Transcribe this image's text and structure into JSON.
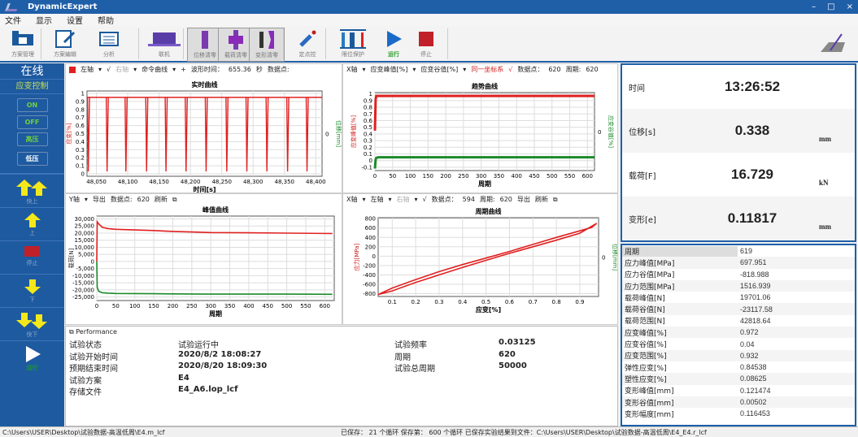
{
  "app": {
    "title": "DynamicExpert",
    "window_controls": [
      "–",
      "□",
      "×"
    ]
  },
  "menu": [
    "文件",
    "显示",
    "设置",
    "帮助"
  ],
  "toolbar": [
    {
      "label": "方案管理",
      "icon": "scheme-manage-icon"
    },
    {
      "label": "方案编辑",
      "icon": "scheme-edit-icon"
    },
    {
      "label": "分析",
      "icon": "analysis-icon"
    },
    {
      "label": "联机",
      "icon": "connect-laptop-icon"
    },
    {
      "label": "位移清零",
      "icon": "displacement-zero-icon"
    },
    {
      "label": "载荷清零",
      "icon": "load-zero-icon"
    },
    {
      "label": "变形清零",
      "icon": "deformation-zero-icon"
    },
    {
      "label": "定点控",
      "icon": "fixed-point-icon"
    },
    {
      "label": "限位保护",
      "icon": "limit-protect-icon"
    },
    {
      "label": "运行",
      "icon": "play-icon"
    },
    {
      "label": "停止",
      "icon": "stop-icon"
    }
  ],
  "colors": {
    "brand": "#1f5fa8",
    "series_red": "#e02020",
    "series_green": "#1a8a2a",
    "run_green": "#2aa02a",
    "stop_red": "#c0202a",
    "arrow_yellow": "#f3e81a"
  },
  "sidebar": {
    "status": "在线",
    "mode": "应变控制",
    "buttons": [
      "ON",
      "OFF",
      "高压",
      "低压"
    ],
    "moves": [
      {
        "label": "快上",
        "icon": "fast-up-icon"
      },
      {
        "label": "上",
        "icon": "up-icon"
      },
      {
        "label": "停止",
        "icon": "stop-icon"
      },
      {
        "label": "下",
        "icon": "down-icon"
      },
      {
        "label": "快下",
        "icon": "fast-down-icon"
      },
      {
        "label": "运行",
        "icon": "play-icon"
      }
    ]
  },
  "panes": {
    "realtime": {
      "left_axis": "左轴",
      "check": "√",
      "right_axis": "右轴",
      "cmd": "命令曲线",
      "plus": "+",
      "wave_time_label": "波形时间：",
      "wave_time": "655.36",
      "unit": "秒",
      "points_label": "数据点:"
    },
    "trend": {
      "x_axis": "X轴",
      "s1": "应变峰值[%]",
      "s2": "应变谷值[%]",
      "same": "同一坐标系",
      "check": "√",
      "points_label": "数据点：",
      "points": "620",
      "cycle_label": "周期:",
      "cycle": "620"
    },
    "peak": {
      "y_axis": "Y轴",
      "export": "导出",
      "points_label": "数据点:",
      "points": "620",
      "refresh": "刷新"
    },
    "cycle": {
      "x_axis": "X轴",
      "left_axis": "左轴",
      "right_axis": "右轴",
      "check": "√",
      "points_label": "数据点：",
      "points": "594",
      "cycle_label": "周期:",
      "cycle": "620",
      "export": "导出",
      "refresh": "刷新"
    }
  },
  "chart_data": [
    {
      "type": "line",
      "title": "实时曲线",
      "xlabel": "时间[s]",
      "ylabel": "应变[%]",
      "y2label": "位移[mm]",
      "y2ticks": [
        "0"
      ],
      "xlim": [
        48035,
        48410
      ],
      "ylim": [
        -0.03,
        1.03
      ],
      "xticks": [
        48050,
        48100,
        48150,
        48200,
        48250,
        48300,
        48350,
        48400
      ],
      "xtick_labels": [
        "48,050",
        "48,100",
        "48,150",
        "48,200",
        "48,250",
        "48,300",
        "48,350",
        "48,400"
      ],
      "yticks": [
        0,
        0.1,
        0.2,
        0.3,
        0.4,
        0.5,
        0.6,
        0.7,
        0.8,
        0.9,
        1
      ],
      "ytick_labels": [
        "0",
        "0.1",
        "0.2",
        "0.3",
        "0.4",
        "0.5",
        "0.6",
        "0.7",
        "0.8",
        "0.9",
        "1"
      ],
      "grid": true,
      "baseline": 0.95,
      "spike_min": 0.03,
      "spike_times": [
        48037,
        48067,
        48097,
        48130,
        48161,
        48193,
        48225,
        48258,
        48290,
        48322,
        48355,
        48386
      ]
    },
    {
      "type": "line",
      "title": "趋势曲线",
      "xlabel": "周期",
      "ylabel": "应变峰值[%]",
      "y2label": "应变谷值[%]",
      "y2ticks": [
        "0"
      ],
      "xlim": [
        0,
        620
      ],
      "ylim": [
        -0.15,
        1.02
      ],
      "xticks": [
        0,
        50,
        100,
        150,
        200,
        250,
        300,
        350,
        400,
        450,
        500,
        550,
        600
      ],
      "yticks": [
        -0.1,
        0,
        0.1,
        0.2,
        0.3,
        0.4,
        0.5,
        0.6,
        0.7,
        0.8,
        0.9,
        1
      ],
      "ytick_labels": [
        "-0.1",
        "0",
        "0.1",
        "0.2",
        "0.3",
        "0.4",
        "0.5",
        "0.6",
        "0.7",
        "0.8",
        "0.9",
        "1"
      ],
      "grid": true,
      "series": [
        {
          "name": "应变峰值[%]",
          "color": "#e02020",
          "x": [
            0,
            2,
            4,
            10,
            50,
            100,
            200,
            300,
            400,
            500,
            620
          ],
          "y": [
            0.45,
            0.92,
            0.97,
            0.97,
            0.97,
            0.97,
            0.97,
            0.97,
            0.97,
            0.97,
            0.97
          ]
        },
        {
          "name": "应变谷值[%]",
          "color": "#1a8a2a",
          "x": [
            0,
            2,
            4,
            10,
            50,
            100,
            200,
            300,
            400,
            500,
            620
          ],
          "y": [
            -0.12,
            0.02,
            0.04,
            0.05,
            0.05,
            0.05,
            0.05,
            0.05,
            0.05,
            0.05,
            0.05
          ]
        }
      ]
    },
    {
      "type": "line",
      "title": "峰值曲线",
      "xlabel": "周期",
      "ylabel": "载荷[N]",
      "xlim": [
        0,
        625
      ],
      "ylim": [
        -27500,
        32000
      ],
      "xticks": [
        0,
        50,
        100,
        150,
        200,
        250,
        300,
        350,
        400,
        450,
        500,
        550,
        600
      ],
      "yticks": [
        -25000,
        -20000,
        -15000,
        -10000,
        -5000,
        0,
        5000,
        10000,
        15000,
        20000,
        25000,
        30000
      ],
      "ytick_labels": [
        "-25,000",
        "-20,000",
        "-15,000",
        "-10,000",
        "-5,000",
        "0",
        "5,000",
        "10,000",
        "15,000",
        "20,000",
        "25,000",
        "30,000"
      ],
      "grid": true,
      "series": [
        {
          "color": "#e02020",
          "x": [
            0,
            1,
            5,
            15,
            30,
            50,
            100,
            150,
            200,
            250,
            300,
            400,
            500,
            620
          ],
          "y": [
            0,
            28000,
            26500,
            24000,
            23200,
            22700,
            22200,
            21800,
            21200,
            20800,
            20400,
            20200,
            20000,
            19700
          ]
        },
        {
          "color": "#1a8a2a",
          "x": [
            0,
            1,
            5,
            15,
            30,
            50,
            100,
            150,
            200,
            300,
            400,
            500,
            620
          ],
          "y": [
            0,
            -18000,
            -21000,
            -22000,
            -22300,
            -22500,
            -22600,
            -22700,
            -22800,
            -23000,
            -23000,
            -23000,
            -23100
          ]
        }
      ]
    },
    {
      "type": "line",
      "title": "周期曲线",
      "xlabel": "应变[%]",
      "ylabel": "应力[MPa]",
      "y2label": "位移[mm]",
      "y2ticks": [
        "0"
      ],
      "xlim": [
        0.04,
        0.98
      ],
      "ylim": [
        -860,
        820
      ],
      "xticks": [
        0.1,
        0.2,
        0.3,
        0.4,
        0.5,
        0.6,
        0.7,
        0.8,
        0.9
      ],
      "yticks": [
        -800,
        -600,
        -400,
        -200,
        0,
        200,
        400,
        600,
        800
      ],
      "grid": true,
      "series": [
        {
          "color": "#e02020",
          "x": [
            0.04,
            0.1,
            0.2,
            0.3,
            0.4,
            0.5,
            0.6,
            0.7,
            0.8,
            0.9,
            0.972,
            0.95,
            0.9,
            0.8,
            0.7,
            0.6,
            0.5,
            0.4,
            0.3,
            0.2,
            0.1,
            0.04
          ],
          "y": [
            -819,
            -740,
            -560,
            -400,
            -240,
            -90,
            60,
            200,
            340,
            490,
            698,
            610,
            540,
            400,
            250,
            100,
            -40,
            -180,
            -330,
            -500,
            -680,
            -819
          ]
        }
      ]
    }
  ],
  "performance": {
    "title": "Performance",
    "left": [
      {
        "k": "试验状态",
        "v": "试验运行中"
      },
      {
        "k": "试验开始时间",
        "v": "2020/8/2 18:08:27"
      },
      {
        "k": "预期结束时间",
        "v": "2020/8/20 18:09:30"
      },
      {
        "k": "试验方案",
        "v": "E4"
      },
      {
        "k": "存储文件",
        "v": "E4_A6.lop_lcf"
      }
    ],
    "right": [
      {
        "k": "试验频率",
        "v": "0.03125"
      },
      {
        "k": "周期",
        "v": "620"
      },
      {
        "k": "试验总周期",
        "v": "50000"
      }
    ]
  },
  "readouts": [
    {
      "label": "时间",
      "value": "13:26:52",
      "unit": ""
    },
    {
      "label": "位移[s]",
      "value": "0.338",
      "unit": "mm"
    },
    {
      "label": "载荷[F]",
      "value": "16.729",
      "unit": "kN"
    },
    {
      "label": "变形[e]",
      "value": "0.11817",
      "unit": "mm"
    }
  ],
  "stats": [
    [
      "周期",
      "619"
    ],
    [
      "应力峰值[MPa]",
      "697.951"
    ],
    [
      "应力谷值[MPa]",
      "-818.988"
    ],
    [
      "应力范围[MPa]",
      "1516.939"
    ],
    [
      "载荷峰值[N]",
      "19701.06"
    ],
    [
      "载荷谷值[N]",
      "-23117.58"
    ],
    [
      "载荷范围[N]",
      "42818.64"
    ],
    [
      "应变峰值[%]",
      "0.972"
    ],
    [
      "应变谷值[%]",
      "0.04"
    ],
    [
      "应变范围[%]",
      "0.932"
    ],
    [
      "弹性应变[%]",
      "0.84538"
    ],
    [
      "塑性应变[%]",
      "0.08625"
    ],
    [
      "变形峰值[mm]",
      "0.121474"
    ],
    [
      "变形谷值[mm]",
      "0.00502"
    ],
    [
      "变形幅度[mm]",
      "0.116453"
    ]
  ],
  "statusbar": {
    "left": "C:\\Users\\USER\\Desktop\\试验数据-高温低周\\E4.m_lcf",
    "right": "已保存： 21 个循环   保存第： 600 个循环   已保存实验结果到文件：C:\\Users\\USER\\Desktop\\试验数据-高温低周\\E4_E4.r_lcf"
  }
}
